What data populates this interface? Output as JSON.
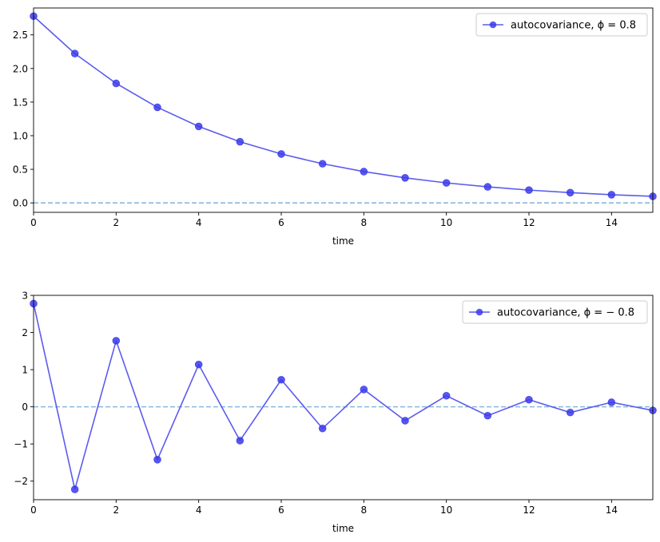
{
  "chart_data": [
    {
      "type": "line",
      "xlabel": "time",
      "ylabel": "",
      "xlim": [
        0,
        15
      ],
      "ylim": [
        -0.14,
        2.9
      ],
      "xticks": [
        0,
        2,
        4,
        6,
        8,
        10,
        12,
        14
      ],
      "yticks": [
        0.0,
        0.5,
        1.0,
        1.5,
        2.0,
        2.5
      ],
      "ytick_labels": [
        "0.0",
        "0.5",
        "1.0",
        "1.5",
        "2.0",
        "2.5"
      ],
      "hline": 0,
      "grid": false,
      "legend_position": "top-right",
      "series": [
        {
          "name": "autocovariance, ϕ = 0.8",
          "x": [
            0,
            1,
            2,
            3,
            4,
            5,
            6,
            7,
            8,
            9,
            10,
            11,
            12,
            13,
            14,
            15
          ],
          "values": [
            2.778,
            2.222,
            1.778,
            1.422,
            1.138,
            0.91,
            0.728,
            0.583,
            0.466,
            0.373,
            0.298,
            0.239,
            0.191,
            0.153,
            0.122,
            0.098
          ]
        }
      ]
    },
    {
      "type": "line",
      "xlabel": "time",
      "ylabel": "",
      "xlim": [
        0,
        15
      ],
      "ylim": [
        -2.5,
        3.0
      ],
      "xticks": [
        0,
        2,
        4,
        6,
        8,
        10,
        12,
        14
      ],
      "yticks": [
        -2,
        -1,
        0,
        1,
        2,
        3
      ],
      "ytick_labels": [
        "−2",
        "−1",
        "0",
        "1",
        "2",
        "3"
      ],
      "hline": 0,
      "grid": false,
      "legend_position": "top-right",
      "series": [
        {
          "name": "autocovariance, ϕ = − 0.8",
          "x": [
            0,
            1,
            2,
            3,
            4,
            5,
            6,
            7,
            8,
            9,
            10,
            11,
            12,
            13,
            14,
            15
          ],
          "values": [
            2.778,
            -2.222,
            1.778,
            -1.422,
            1.138,
            -0.91,
            0.728,
            -0.583,
            0.466,
            -0.373,
            0.298,
            -0.239,
            0.191,
            -0.153,
            0.122,
            -0.098
          ]
        }
      ]
    }
  ],
  "colors": {
    "series_line": "#5b5bf0",
    "series_marker": "#3c3ceb",
    "hline": "#8ab6dc",
    "axes": "#000000",
    "legend_border": "#cccccc"
  }
}
